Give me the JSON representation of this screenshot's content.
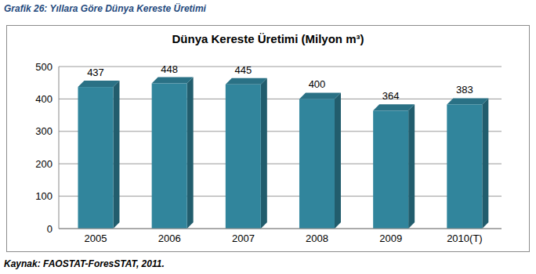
{
  "caption": "Grafik 26: Yıllara Göre Dünya Kereste Üretimi",
  "source": "Kaynak: FAOSTAT-ForesSTAT, 2011.",
  "chart_data": {
    "type": "bar",
    "title": "Dünya Kereste Üretimi (Milyon m³)",
    "categories": [
      "2005",
      "2006",
      "2007",
      "2008",
      "2009",
      "2010(T)"
    ],
    "values": [
      437,
      448,
      445,
      400,
      364,
      383
    ],
    "color": "#31859c",
    "ylim": [
      0,
      500
    ],
    "yticks": [
      0,
      100,
      200,
      300,
      400,
      500
    ],
    "grid": true,
    "data_labels": true
  }
}
